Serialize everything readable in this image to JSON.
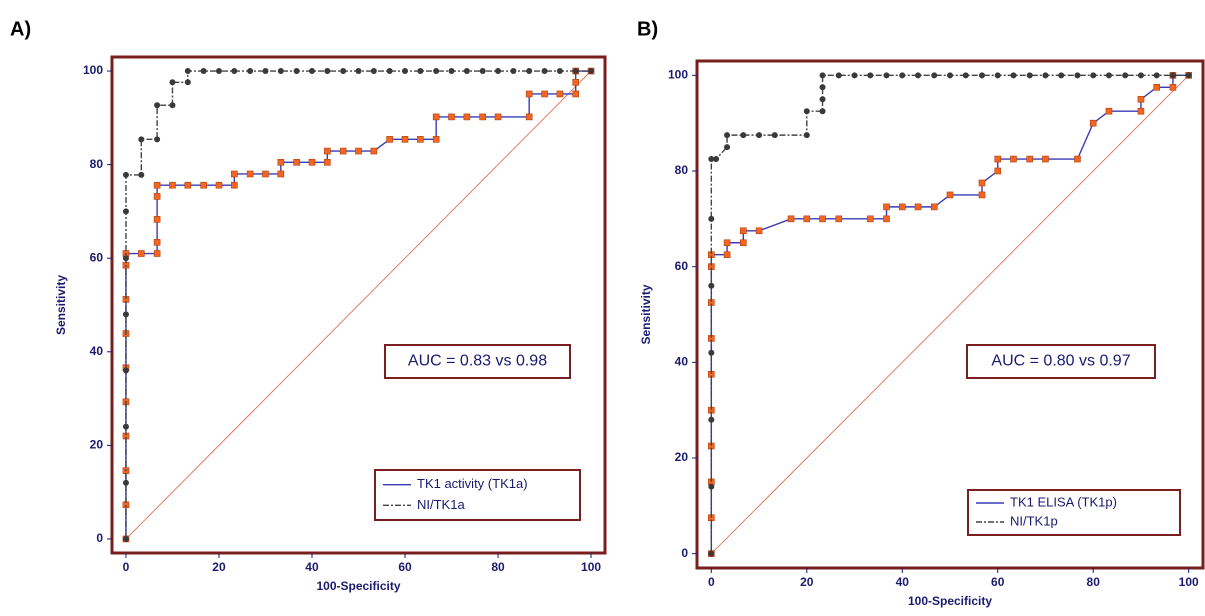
{
  "chart_data": [
    {
      "type": "line",
      "title": "A)",
      "x_label": "100-Specificity",
      "y_label": "Sensitivity",
      "annotation": "AUC = 0.83 vs 0.98",
      "xlim": [
        -3,
        103
      ],
      "ylim": [
        -3,
        103
      ],
      "xticks": [
        0,
        20,
        40,
        60,
        80,
        100
      ],
      "yticks": [
        0,
        20,
        40,
        60,
        80,
        100
      ],
      "reference_line": true,
      "reference_color": "#e06040",
      "legend": "lower right",
      "series": [
        {
          "name": "TK1 activity (TK1a)",
          "color": "#3b3bb8",
          "marker": "square",
          "marker_color": "#f26522",
          "line_style": "solid",
          "x": [
            0,
            0,
            0,
            0,
            0,
            0,
            0,
            0,
            0,
            0,
            3.3,
            6.7,
            6.7,
            6.7,
            6.7,
            6.7,
            10,
            13.3,
            16.7,
            20,
            23.3,
            23.3,
            26.7,
            30,
            33.3,
            33.3,
            36.7,
            40,
            43.3,
            43.3,
            46.7,
            50,
            53.3,
            56.7,
            60,
            63.3,
            66.7,
            66.7,
            70,
            73.3,
            76.7,
            80,
            86.7,
            86.7,
            90,
            93.3,
            96.7,
            96.7,
            96.7,
            100
          ],
          "values": [
            0,
            7.3,
            14.6,
            22,
            29.3,
            36.6,
            43.9,
            51.2,
            58.5,
            61,
            61,
            61,
            63.4,
            68.3,
            73.2,
            75.6,
            75.6,
            75.6,
            75.6,
            75.6,
            75.6,
            78,
            78,
            78,
            78,
            80.5,
            80.5,
            80.5,
            80.5,
            82.9,
            82.9,
            82.9,
            82.9,
            85.4,
            85.4,
            85.4,
            85.4,
            90.2,
            90.2,
            90.2,
            90.2,
            90.2,
            90.2,
            95.1,
            95.1,
            95.1,
            95.1,
            97.6,
            100,
            100
          ]
        },
        {
          "name": "NI/TK1a",
          "color": "#444444",
          "marker": "circle",
          "marker_color": "#3a3a3a",
          "line_style": "dashdot",
          "x": [
            0,
            0,
            0,
            0,
            0,
            0,
            0,
            0,
            3.3,
            3.3,
            6.7,
            6.7,
            10,
            10,
            13.3,
            13.3,
            16.7,
            20,
            23.3,
            26.7,
            30,
            33.3,
            36.7,
            40,
            43.3,
            46.7,
            50,
            53.3,
            56.7,
            60,
            63.3,
            66.7,
            70,
            73.3,
            76.7,
            80,
            83.3,
            86.7,
            90,
            93.3,
            96.7,
            100
          ],
          "values": [
            0,
            12,
            24,
            36,
            48,
            60,
            70,
            77.8,
            77.8,
            85.4,
            85.4,
            92.7,
            92.7,
            97.6,
            97.6,
            100,
            100,
            100,
            100,
            100,
            100,
            100,
            100,
            100,
            100,
            100,
            100,
            100,
            100,
            100,
            100,
            100,
            100,
            100,
            100,
            100,
            100,
            100,
            100,
            100,
            100,
            100
          ]
        }
      ]
    },
    {
      "type": "line",
      "title": "B)",
      "x_label": "100-Specificity",
      "y_label": "Sensitivity",
      "annotation": "AUC = 0.80 vs 0.97",
      "xlim": [
        -3,
        103
      ],
      "ylim": [
        -3,
        103
      ],
      "xticks": [
        0,
        20,
        40,
        60,
        80,
        100
      ],
      "yticks": [
        0,
        20,
        40,
        60,
        80,
        100
      ],
      "reference_line": true,
      "reference_color": "#e06040",
      "legend": "lower right",
      "series": [
        {
          "name": "TK1 ELISA (TK1p)",
          "color": "#3b3bb8",
          "marker": "square",
          "marker_color": "#f26522",
          "line_style": "solid",
          "x": [
            0,
            0,
            0,
            0,
            0,
            0,
            0,
            0,
            0,
            0,
            3.3,
            3.3,
            6.7,
            6.7,
            10,
            16.7,
            20,
            23.3,
            26.7,
            33.3,
            36.7,
            36.7,
            40,
            43.3,
            46.7,
            50,
            56.7,
            56.7,
            60,
            60,
            63.3,
            66.7,
            70,
            76.7,
            80,
            83.3,
            90,
            90,
            93.3,
            96.7,
            96.7,
            100
          ],
          "values": [
            0,
            7.5,
            15,
            22.5,
            30,
            37.5,
            45,
            52.5,
            60,
            62.5,
            62.5,
            65,
            65,
            67.5,
            67.5,
            70,
            70,
            70,
            70,
            70,
            70,
            72.5,
            72.5,
            72.5,
            72.5,
            75,
            75,
            77.5,
            80,
            82.5,
            82.5,
            82.5,
            82.5,
            82.5,
            90,
            92.5,
            92.5,
            95,
            97.5,
            97.5,
            100,
            100
          ]
        },
        {
          "name": "NI/TK1p",
          "color": "#444444",
          "marker": "circle",
          "marker_color": "#3a3a3a",
          "line_style": "dashdot",
          "x": [
            0,
            0,
            0,
            0,
            0,
            0,
            0,
            1,
            3.3,
            3.3,
            6.7,
            10,
            13.3,
            20,
            20,
            23.3,
            23.3,
            23.3,
            23.3,
            26.7,
            30,
            33.3,
            36.7,
            40,
            43.3,
            46.7,
            50,
            53.3,
            56.7,
            60,
            63.3,
            66.7,
            70,
            73.3,
            76.7,
            80,
            83.3,
            86.7,
            90,
            93.3,
            96.7,
            100
          ],
          "values": [
            0,
            14,
            28,
            42,
            56,
            70,
            82.5,
            82.5,
            85,
            87.5,
            87.5,
            87.5,
            87.5,
            87.5,
            92.5,
            92.5,
            95,
            97.5,
            100,
            100,
            100,
            100,
            100,
            100,
            100,
            100,
            100,
            100,
            100,
            100,
            100,
            100,
            100,
            100,
            100,
            100,
            100,
            100,
            100,
            100,
            100,
            100
          ]
        }
      ]
    }
  ]
}
